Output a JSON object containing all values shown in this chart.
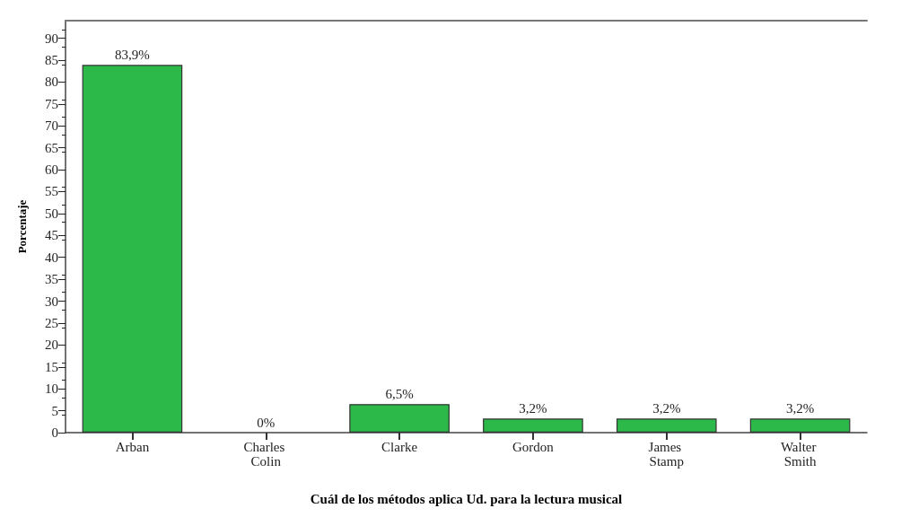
{
  "chart_data": {
    "type": "bar",
    "xlabel": "Cuál de los métodos aplica Ud. para la lectura musical",
    "ylabel": "Porcentaje",
    "categories": [
      "Arban",
      "Charles Colin",
      "Clarke",
      "Gordon",
      "James Stamp",
      "Walter Smith"
    ],
    "values": [
      83.9,
      0,
      6.5,
      3.2,
      3.2,
      3.2
    ],
    "value_labels": [
      "83,9%",
      "0%",
      "6,5%",
      "3,2%",
      "3,2%",
      "3,2%"
    ],
    "color": "#2db84a",
    "ylim": [
      0,
      94
    ],
    "yticks": [
      0,
      5,
      10,
      15,
      20,
      25,
      30,
      35,
      40,
      45,
      50,
      55,
      60,
      65,
      70,
      75,
      80,
      85,
      90
    ],
    "grid": false
  }
}
